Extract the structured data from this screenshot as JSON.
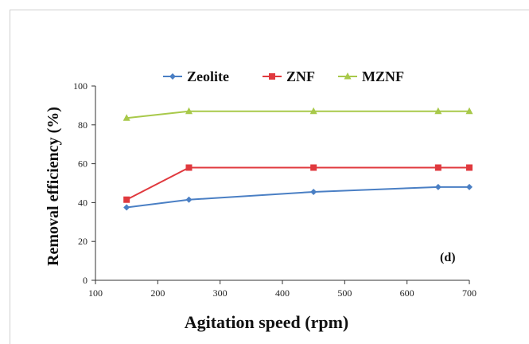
{
  "chart_data": {
    "type": "line",
    "xlabel": "Agitation speed (rpm)",
    "ylabel": "Removal efficiency (%)",
    "xlim": [
      100,
      700
    ],
    "ylim": [
      0,
      100
    ],
    "xticks": [
      100,
      200,
      300,
      400,
      500,
      600,
      700
    ],
    "yticks": [
      0,
      20,
      40,
      60,
      80,
      100
    ],
    "legend_position": "top",
    "annotation": "(d)",
    "grid": false,
    "series": [
      {
        "name": "Zeolite",
        "color": "#4a7fc4",
        "marker": "diamond",
        "x": [
          150,
          250,
          450,
          650,
          700
        ],
        "y": [
          37.5,
          41.5,
          45.5,
          48,
          48
        ]
      },
      {
        "name": "ZNF",
        "color": "#e0393e",
        "marker": "square",
        "x": [
          150,
          250,
          450,
          650,
          700
        ],
        "y": [
          41.5,
          58,
          58,
          58,
          58
        ]
      },
      {
        "name": "MZNF",
        "color": "#a8c94a",
        "marker": "triangle",
        "x": [
          150,
          250,
          450,
          650,
          700
        ],
        "y": [
          83.5,
          87,
          87,
          87,
          87
        ]
      }
    ]
  }
}
